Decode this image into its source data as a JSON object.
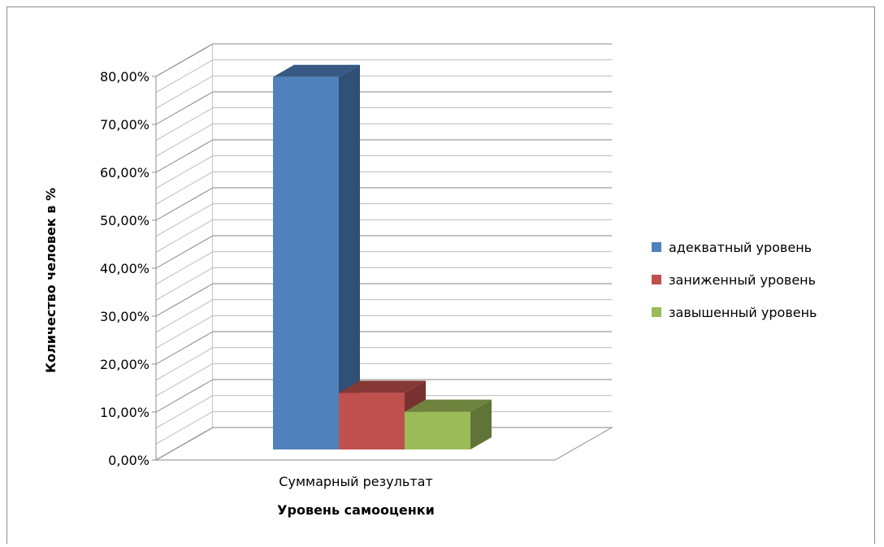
{
  "chart_data": {
    "type": "bar",
    "categories": [
      "Суммарный результат"
    ],
    "series": [
      {
        "name": "адекватный уровень",
        "values": [
          0.79
        ],
        "color": "#4F81BD"
      },
      {
        "name": "заниженный уровень",
        "values": [
          0.12
        ],
        "color": "#C0504D"
      },
      {
        "name": "завышенный уровень",
        "values": [
          0.08
        ],
        "color": "#9BBB59"
      }
    ],
    "title": "",
    "xlabel": "Уровень самооценки",
    "ylabel": "Количество человек в %",
    "ylim": [
      0,
      0.8
    ],
    "yticks": [
      0,
      0.1,
      0.2,
      0.3,
      0.4,
      0.5,
      0.6,
      0.7,
      0.8
    ],
    "ytick_labels": [
      "0,00%",
      "10,00%",
      "20,00%",
      "30,00%",
      "40,00%",
      "50,00%",
      "60,00%",
      "70,00%",
      "80,00%"
    ],
    "three_d": true,
    "grid": true,
    "legend_position": "right"
  }
}
